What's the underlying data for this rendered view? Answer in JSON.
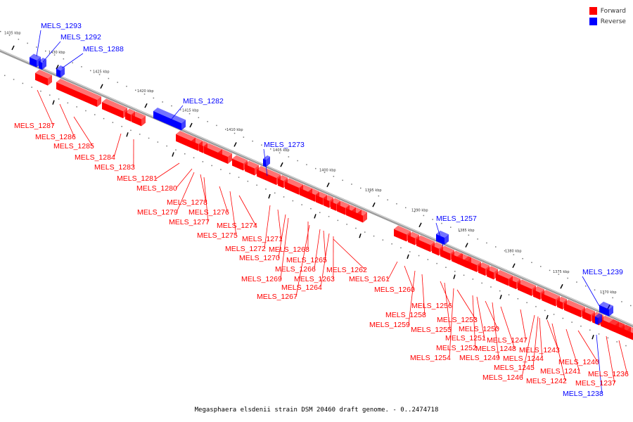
{
  "legend": {
    "forward_label": "Forward",
    "reverse_label": "Reverse",
    "forward_color": "#ff0000",
    "reverse_color": "#0000ff"
  },
  "caption": "Megasphaera elsdenii strain DSM 20460 draft genome. - 0..2474718",
  "axis": {
    "direction": "decreasing left-to-right",
    "ticks": [
      "1435 kbp",
      "1430 kbp",
      "1425 kbp",
      "1420 kbp",
      "1415 kbp",
      "1410 kbp",
      "1405 kbp",
      "1400 kbp",
      "1395 kbp",
      "1390 kbp",
      "1385 kbp",
      "1380 kbp",
      "1375 kbp",
      "1370 kbp"
    ]
  },
  "genes": [
    {
      "name": "MELS_1293",
      "strand": "reverse"
    },
    {
      "name": "MELS_1292",
      "strand": "reverse"
    },
    {
      "name": "MELS_1288",
      "strand": "reverse"
    },
    {
      "name": "MELS_1287",
      "strand": "forward"
    },
    {
      "name": "MELS_1286",
      "strand": "forward"
    },
    {
      "name": "MELS_1285",
      "strand": "forward"
    },
    {
      "name": "MELS_1284",
      "strand": "forward"
    },
    {
      "name": "MELS_1283",
      "strand": "forward"
    },
    {
      "name": "MELS_1282",
      "strand": "reverse"
    },
    {
      "name": "MELS_1281",
      "strand": "forward"
    },
    {
      "name": "MELS_1280",
      "strand": "forward"
    },
    {
      "name": "MELS_1279",
      "strand": "forward"
    },
    {
      "name": "MELS_1278",
      "strand": "forward"
    },
    {
      "name": "MELS_1277",
      "strand": "forward"
    },
    {
      "name": "MELS_1276",
      "strand": "forward"
    },
    {
      "name": "MELS_1275",
      "strand": "forward"
    },
    {
      "name": "MELS_1274",
      "strand": "forward"
    },
    {
      "name": "MELS_1273",
      "strand": "reverse"
    },
    {
      "name": "MELS_1272",
      "strand": "forward"
    },
    {
      "name": "MELS_1271",
      "strand": "forward"
    },
    {
      "name": "MELS_1270",
      "strand": "forward"
    },
    {
      "name": "MELS_1269",
      "strand": "forward"
    },
    {
      "name": "MELS_1268",
      "strand": "forward"
    },
    {
      "name": "MELS_1267",
      "strand": "forward"
    },
    {
      "name": "MELS_1266",
      "strand": "forward"
    },
    {
      "name": "MELS_1265",
      "strand": "forward"
    },
    {
      "name": "MELS_1264",
      "strand": "forward"
    },
    {
      "name": "MELS_1263",
      "strand": "forward"
    },
    {
      "name": "MELS_1262",
      "strand": "forward"
    },
    {
      "name": "MELS_1261",
      "strand": "forward"
    },
    {
      "name": "MELS_1260",
      "strand": "forward"
    },
    {
      "name": "MELS_1259",
      "strand": "forward"
    },
    {
      "name": "MELS_1258",
      "strand": "forward"
    },
    {
      "name": "MELS_1257",
      "strand": "reverse"
    },
    {
      "name": "MELS_1256",
      "strand": "forward"
    },
    {
      "name": "MELS_1255",
      "strand": "forward"
    },
    {
      "name": "MELS_1254",
      "strand": "forward"
    },
    {
      "name": "MELS_1253",
      "strand": "forward"
    },
    {
      "name": "MELS_1252",
      "strand": "forward"
    },
    {
      "name": "MELS_1251",
      "strand": "forward"
    },
    {
      "name": "MELS_1250",
      "strand": "forward"
    },
    {
      "name": "MELS_1249",
      "strand": "forward"
    },
    {
      "name": "MELS_1248",
      "strand": "forward"
    },
    {
      "name": "MELS_1247",
      "strand": "forward"
    },
    {
      "name": "MELS_1246",
      "strand": "forward"
    },
    {
      "name": "MELS_1245",
      "strand": "forward"
    },
    {
      "name": "MELS_1244",
      "strand": "forward"
    },
    {
      "name": "MELS_1243",
      "strand": "forward"
    },
    {
      "name": "MELS_1242",
      "strand": "forward"
    },
    {
      "name": "MELS_1241",
      "strand": "forward"
    },
    {
      "name": "MELS_1240",
      "strand": "forward"
    },
    {
      "name": "MELS_1239",
      "strand": "reverse"
    },
    {
      "name": "MELS_1238",
      "strand": "reverse"
    },
    {
      "name": "MELS_1237",
      "strand": "forward"
    },
    {
      "name": "MELS_1236",
      "strand": "forward"
    }
  ]
}
